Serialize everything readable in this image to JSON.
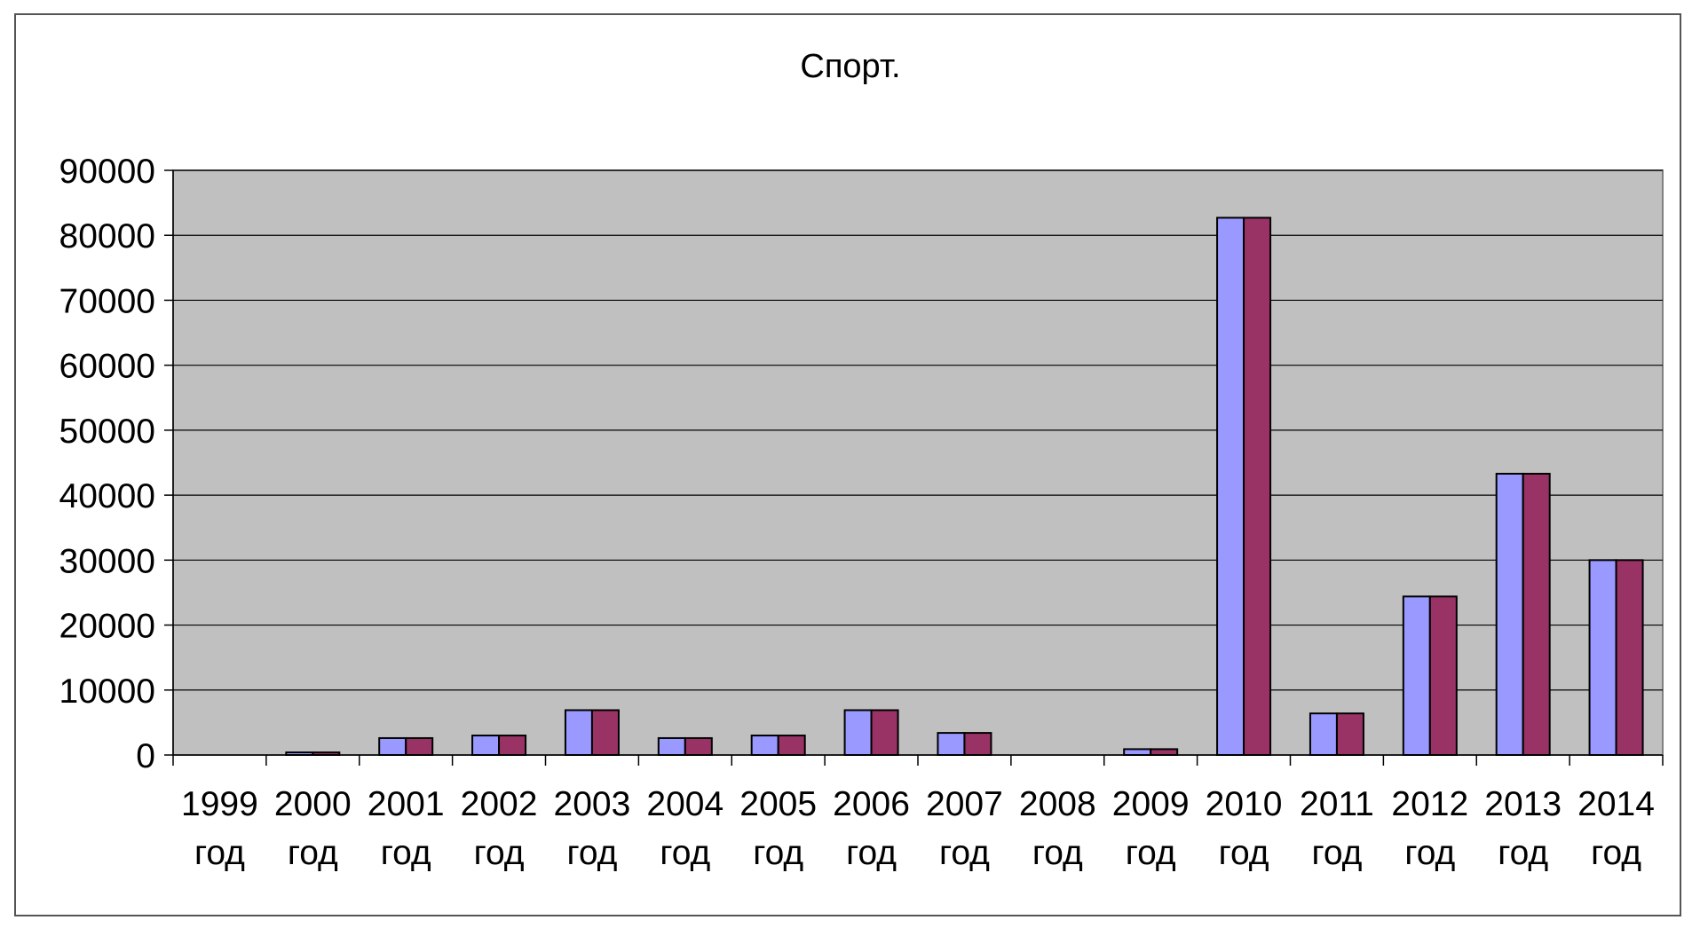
{
  "chart_data": {
    "type": "bar",
    "title": "Спорт.",
    "xlabel": "",
    "ylabel": "",
    "ylim": [
      0,
      90000
    ],
    "yticks": [
      0,
      10000,
      20000,
      30000,
      40000,
      50000,
      60000,
      70000,
      80000,
      90000
    ],
    "grid": true,
    "legend": "none",
    "categories": [
      [
        "1999",
        "год"
      ],
      [
        "2000",
        "год"
      ],
      [
        "2001",
        "год"
      ],
      [
        "2002",
        "год"
      ],
      [
        "2003",
        "год"
      ],
      [
        "2004",
        "год"
      ],
      [
        "2005",
        "год"
      ],
      [
        "2006",
        "год"
      ],
      [
        "2007",
        "год"
      ],
      [
        "2008",
        "год"
      ],
      [
        "2009",
        "год"
      ],
      [
        "2010",
        "год"
      ],
      [
        "2011",
        "год"
      ],
      [
        "2012",
        "год"
      ],
      [
        "2013",
        "год"
      ],
      [
        "2014",
        "год"
      ]
    ],
    "series": [
      {
        "color": "#9999ff",
        "values": [
          0,
          400,
          2600,
          3000,
          6900,
          2600,
          3000,
          6900,
          3400,
          0,
          900,
          82700,
          6400,
          24400,
          43300,
          30000
        ]
      },
      {
        "color": "#993366",
        "values": [
          0,
          400,
          2600,
          3000,
          6900,
          2600,
          3000,
          6900,
          3400,
          0,
          900,
          82700,
          6400,
          24400,
          43300,
          30000
        ]
      }
    ],
    "colors": {
      "plot_area": "#c0c0c0",
      "gridline": "#000000",
      "bar_outline": "#000000"
    }
  }
}
